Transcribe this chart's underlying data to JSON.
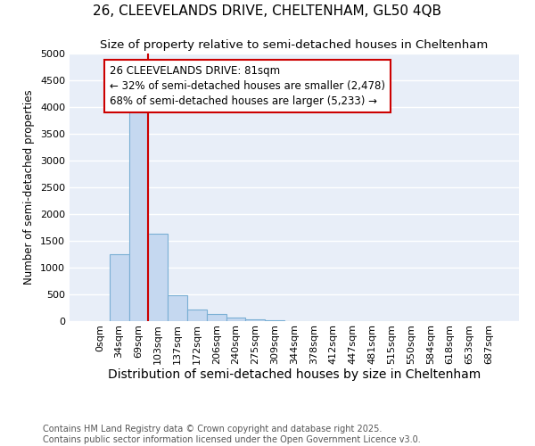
{
  "title1": "26, CLEEVELANDS DRIVE, CHELTENHAM, GL50 4QB",
  "title2": "Size of property relative to semi-detached houses in Cheltenham",
  "xlabel": "Distribution of semi-detached houses by size in Cheltenham",
  "ylabel": "Number of semi-detached properties",
  "categories": [
    "0sqm",
    "34sqm",
    "69sqm",
    "103sqm",
    "137sqm",
    "172sqm",
    "206sqm",
    "240sqm",
    "275sqm",
    "309sqm",
    "344sqm",
    "378sqm",
    "412sqm",
    "447sqm",
    "481sqm",
    "515sqm",
    "550sqm",
    "584sqm",
    "618sqm",
    "653sqm",
    "687sqm"
  ],
  "values": [
    0,
    1250,
    4050,
    1630,
    480,
    220,
    130,
    75,
    40,
    15,
    5,
    2,
    1,
    0,
    0,
    0,
    0,
    0,
    0,
    0,
    0
  ],
  "bar_color": "#c5d8f0",
  "bar_edge_color": "#7aafd4",
  "bar_edge_width": 0.8,
  "vline_x": 2.5,
  "vline_color": "#cc0000",
  "ylim": [
    0,
    5000
  ],
  "yticks": [
    0,
    500,
    1000,
    1500,
    2000,
    2500,
    3000,
    3500,
    4000,
    4500,
    5000
  ],
  "annotation_text": "26 CLEEVELANDS DRIVE: 81sqm\n← 32% of semi-detached houses are smaller (2,478)\n68% of semi-detached houses are larger (5,233) →",
  "annotation_box_color": "#ffffff",
  "annotation_box_edge": "#cc0000",
  "footer": "Contains HM Land Registry data © Crown copyright and database right 2025.\nContains public sector information licensed under the Open Government Licence v3.0.",
  "bg_color": "#ffffff",
  "plot_bg_color": "#e8eef8",
  "grid_color": "#ffffff",
  "title1_fontsize": 11,
  "title2_fontsize": 9.5,
  "xlabel_fontsize": 10,
  "ylabel_fontsize": 8.5,
  "tick_fontsize": 8,
  "footer_fontsize": 7,
  "ann_fontsize": 8.5
}
